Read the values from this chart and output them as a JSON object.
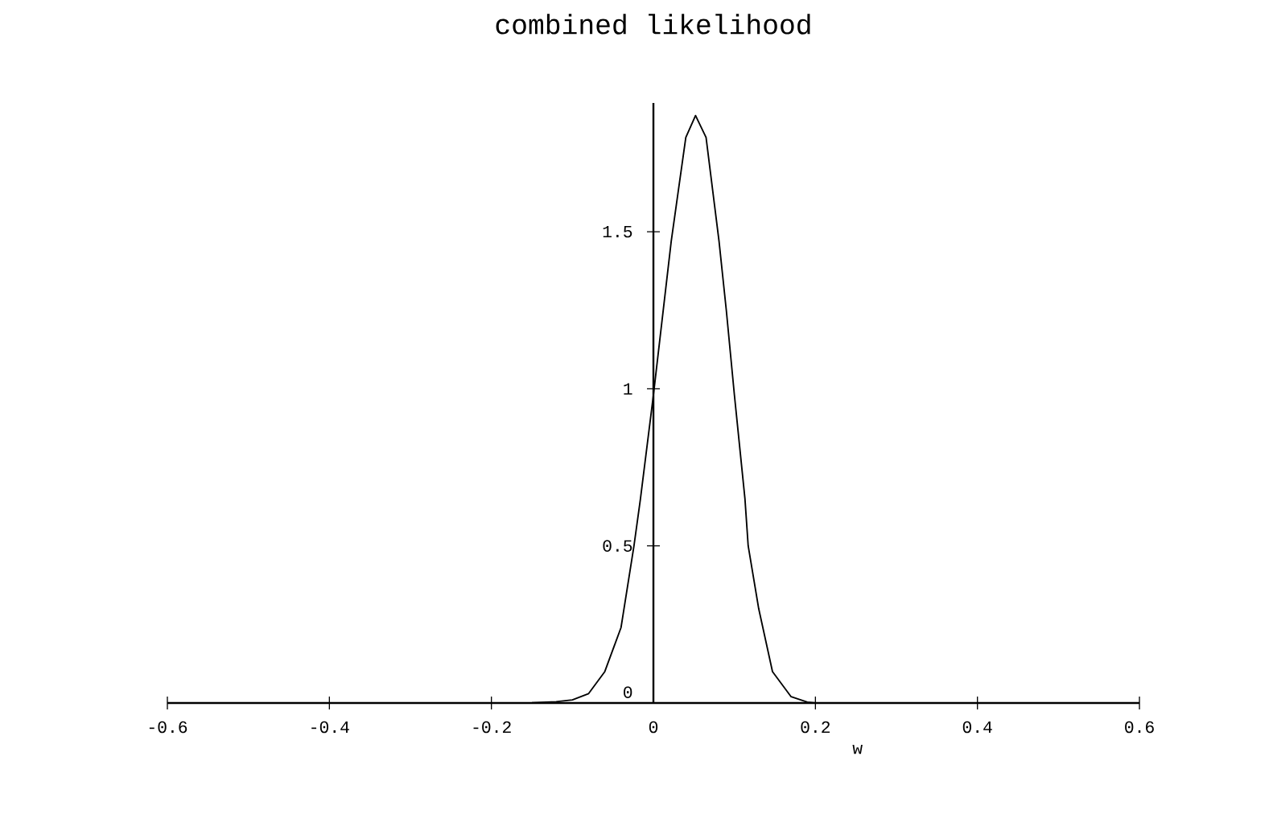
{
  "chart_data": {
    "type": "line",
    "title": "combined likelihood",
    "xlabel": "w",
    "x": [
      -0.6,
      -0.2,
      -0.15,
      -0.12,
      -0.1,
      -0.08,
      -0.06,
      -0.04,
      -0.024,
      -0.016,
      0,
      0.022,
      0.04,
      0.052,
      0.065,
      0.081,
      0.09,
      0.1,
      0.113,
      0.117,
      0.13,
      0.147,
      0.17,
      0.19,
      0.2,
      0.6
    ],
    "values": [
      0,
      0,
      0.001,
      0.004,
      0.01,
      0.03,
      0.1,
      0.24,
      0.5,
      0.65,
      0.98,
      1.47,
      1.8,
      1.87,
      1.8,
      1.47,
      1.25,
      0.98,
      0.65,
      0.5,
      0.3,
      0.1,
      0.02,
      0.003,
      0,
      0
    ],
    "color": "#000000",
    "xlim": [
      -0.6,
      0.6
    ],
    "ylim": [
      0,
      1.91
    ],
    "xticks": [
      -0.6,
      -0.4,
      -0.2,
      0,
      0.2,
      0.4,
      0.6
    ],
    "yticks": [
      0,
      0.5,
      1,
      1.5
    ]
  }
}
